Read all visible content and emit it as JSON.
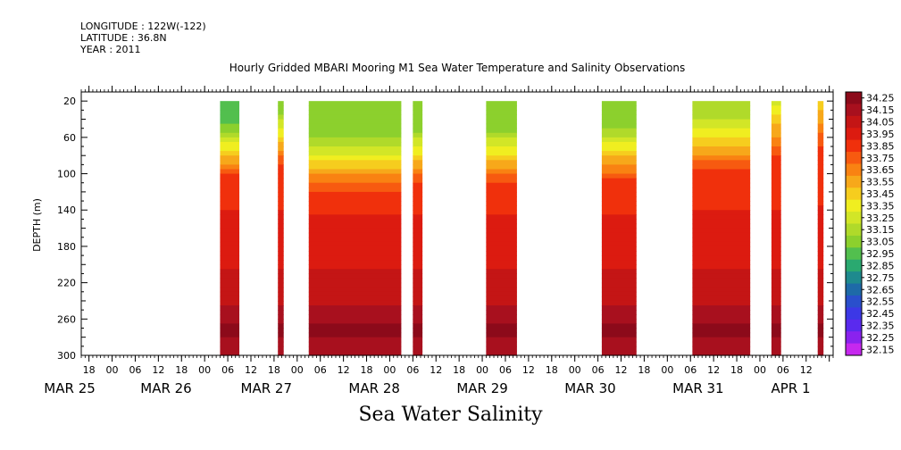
{
  "header": {
    "longitude": "LONGITUDE : 122W(-122)",
    "latitude": "LATITUDE : 36.8N",
    "year": "YEAR : 2011"
  },
  "chart_data": {
    "type": "heatmap",
    "title": "Hourly Gridded MBARI Mooring M1 Sea Water Temperature and Salinity Observations",
    "xlabel": "Sea Water Salinity",
    "ylabel": "DEPTH (m)",
    "ylim": [
      300,
      10
    ],
    "y_ticks": [
      20,
      60,
      100,
      140,
      180,
      220,
      260,
      300
    ],
    "xlim_hours": [
      -8,
      187
    ],
    "hour_tick_labels": [
      "18",
      "00",
      "06",
      "12",
      "18",
      "00",
      "06",
      "12",
      "18",
      "00",
      "06",
      "12",
      "18",
      "00",
      "06",
      "12",
      "18",
      "00",
      "06",
      "12",
      "18",
      "00",
      "06",
      "12",
      "18",
      "00",
      "06",
      "12",
      "18",
      "00",
      "06",
      "12"
    ],
    "date_labels": [
      {
        "label": "MAR 25",
        "hour": -11
      },
      {
        "label": "MAR 26",
        "hour": 14
      },
      {
        "label": "MAR 27",
        "hour": 40
      },
      {
        "label": "MAR 28",
        "hour": 68
      },
      {
        "label": "MAR 29",
        "hour": 96
      },
      {
        "label": "MAR 30",
        "hour": 124
      },
      {
        "label": "MAR 31",
        "hour": 152
      },
      {
        "label": "APR   1",
        "hour": 176
      }
    ],
    "data_blocks": [
      {
        "start": 28,
        "end": 33,
        "surface": 32.95,
        "halocline_depth": 72
      },
      {
        "start": 43,
        "end": 44.5,
        "surface": 33.05,
        "halocline_depth": 60
      },
      {
        "start": 51,
        "end": 75,
        "surface": 33.05,
        "halocline_depth": 88
      },
      {
        "start": 78,
        "end": 80.5,
        "surface": 33.05,
        "halocline_depth": 80
      },
      {
        "start": 97,
        "end": 105,
        "surface": 33.05,
        "halocline_depth": 80
      },
      {
        "start": 127,
        "end": 136,
        "surface": 33.05,
        "halocline_depth": 76
      },
      {
        "start": 150.5,
        "end": 165.5,
        "surface": 33.15,
        "halocline_depth": 66
      },
      {
        "start": 171,
        "end": 173.5,
        "surface": 33.25,
        "halocline_depth": 50
      },
      {
        "start": 183,
        "end": 184.5,
        "surface": 33.35,
        "halocline_depth": 40
      }
    ],
    "colorbar": {
      "labels": [
        "34.25",
        "34.15",
        "34.05",
        "33.95",
        "33.85",
        "33.75",
        "33.65",
        "33.55",
        "33.45",
        "33.35",
        "33.25",
        "33.15",
        "33.05",
        "32.95",
        "32.85",
        "32.75",
        "32.65",
        "32.55",
        "32.45",
        "32.35",
        "32.25",
        "32.15"
      ],
      "colors": [
        "#8c0a1a",
        "#a8101e",
        "#c41515",
        "#dc1b10",
        "#f0300c",
        "#f75a10",
        "#f98212",
        "#f7a81a",
        "#f6cd1e",
        "#f0ee20",
        "#d2e627",
        "#b0da2a",
        "#8cd02d",
        "#52bf4e",
        "#2aa970",
        "#1e8a8e",
        "#1e6aa8",
        "#2a4fcc",
        "#3c38e6",
        "#5a2aee",
        "#8a22ee",
        "#c628ee"
      ]
    }
  }
}
